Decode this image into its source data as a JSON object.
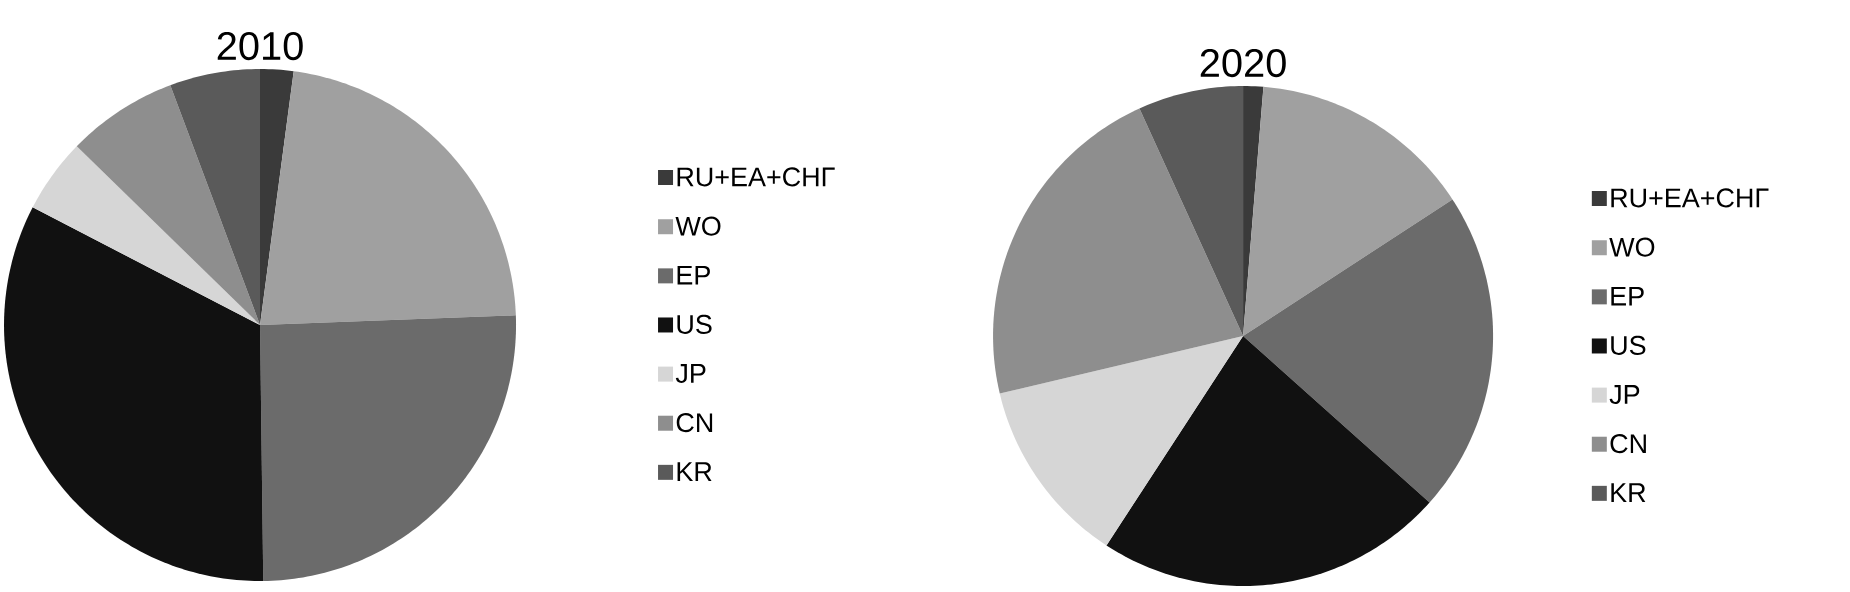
{
  "chart_data": [
    {
      "type": "pie",
      "title": "2010",
      "categories": [
        "RU+EA+СНГ",
        "WO",
        "EP",
        "US",
        "JP",
        "CN",
        "KR"
      ],
      "values": [
        2.1,
        22.3,
        25.4,
        32.8,
        4.7,
        7.0,
        5.7
      ],
      "colors": [
        "#3a3a3a",
        "#a0a0a0",
        "#6b6b6b",
        "#111111",
        "#d6d6d6",
        "#8e8e8e",
        "#5a5a5a"
      ],
      "legend": "right"
    },
    {
      "type": "pie",
      "title": "2020",
      "categories": [
        "RU+EA+СНГ",
        "WO",
        "EP",
        "US",
        "JP",
        "CN",
        "KR"
      ],
      "values": [
        1.3,
        14.5,
        20.8,
        22.6,
        12.1,
        21.9,
        6.8
      ],
      "colors": [
        "#3a3a3a",
        "#a0a0a0",
        "#6b6b6b",
        "#111111",
        "#d6d6d6",
        "#8e8e8e",
        "#5a5a5a"
      ],
      "legend": "right"
    }
  ]
}
